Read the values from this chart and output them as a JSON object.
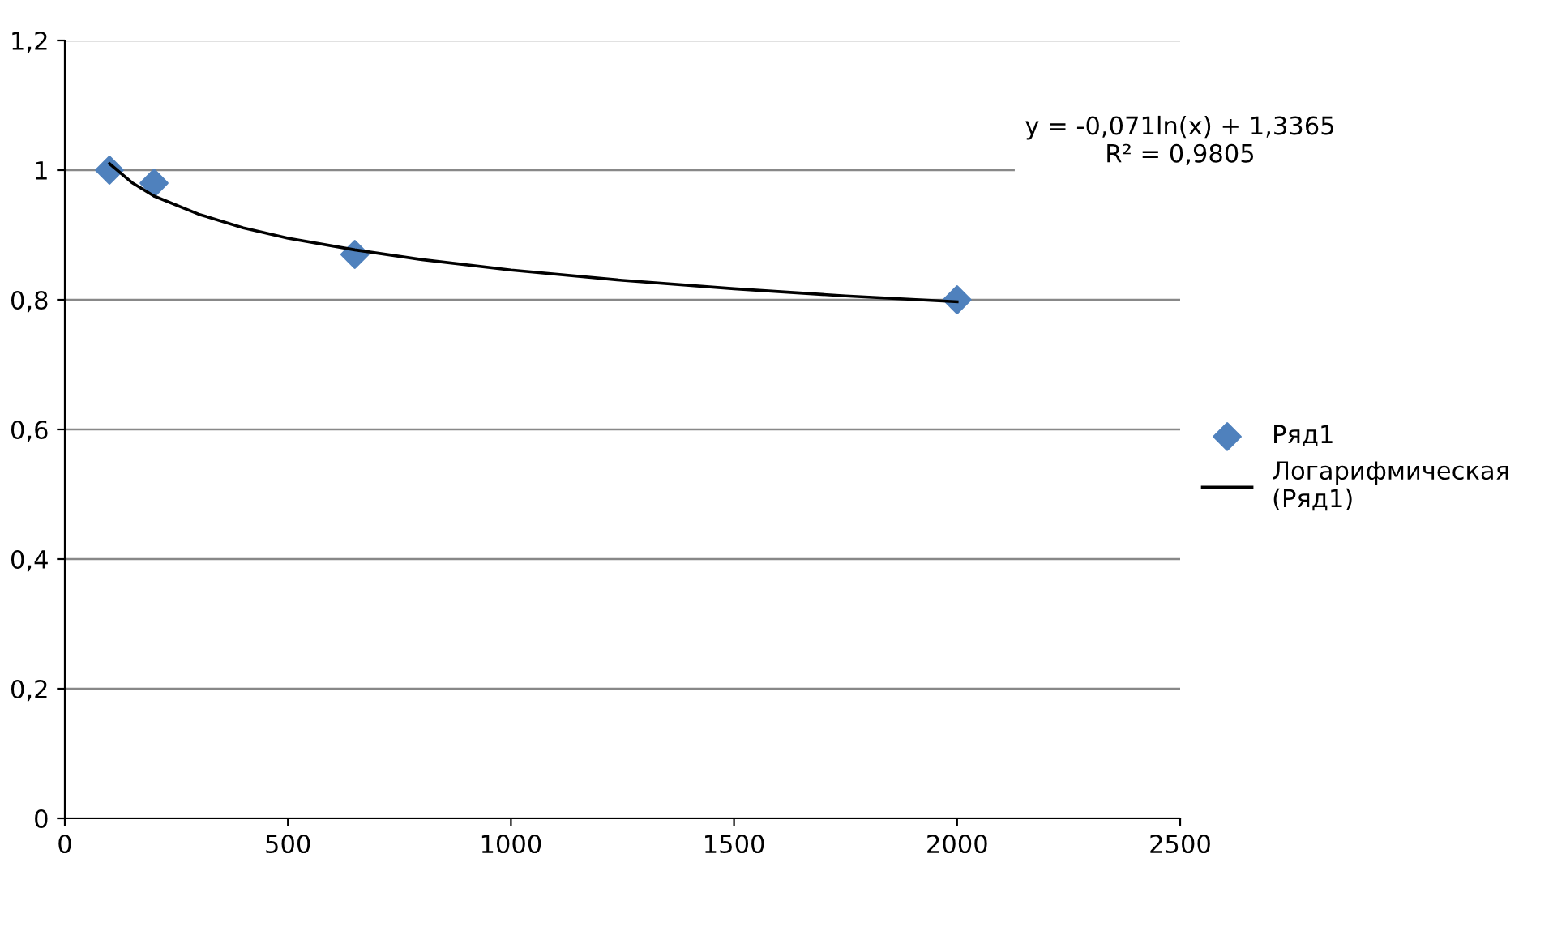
{
  "chart_data": {
    "type": "scatter",
    "xlim": [
      0,
      2500
    ],
    "xticks": [
      0,
      500,
      1000,
      1500,
      2000,
      2500
    ],
    "ylim": [
      0,
      1.2
    ],
    "yticks": [
      {
        "value": 0,
        "label": "0"
      },
      {
        "value": 0.2,
        "label": "0,2"
      },
      {
        "value": 0.4,
        "label": "0,4"
      },
      {
        "value": 0.6,
        "label": "0,6"
      },
      {
        "value": 0.8,
        "label": "0,8"
      },
      {
        "value": 1,
        "label": "1"
      },
      {
        "value": 1.2,
        "label": "1,2"
      }
    ],
    "grid": "y",
    "legend": "right",
    "annotations": [
      "y = -0,071ln(x) + 1,3365\nR² = 0,9805"
    ],
    "series": [
      {
        "name": "Ряд1",
        "marker": "diamond",
        "color": "#4f81bd",
        "x": [
          100,
          200,
          650,
          2000
        ],
        "values": [
          1.0,
          0.98,
          0.87,
          0.8
        ]
      },
      {
        "name": "Логарифмическая\n(Ряд1)",
        "type": "line",
        "marker": "none",
        "line_style": "solid",
        "color": "#000000",
        "x": [
          100,
          150,
          200,
          300,
          400,
          500,
          650,
          800,
          1000,
          1250,
          1500,
          1750,
          2000
        ],
        "values": [
          1.01,
          0.981,
          0.96,
          0.932,
          0.911,
          0.895,
          0.877,
          0.862,
          0.846,
          0.83,
          0.817,
          0.806,
          0.797
        ]
      }
    ]
  }
}
